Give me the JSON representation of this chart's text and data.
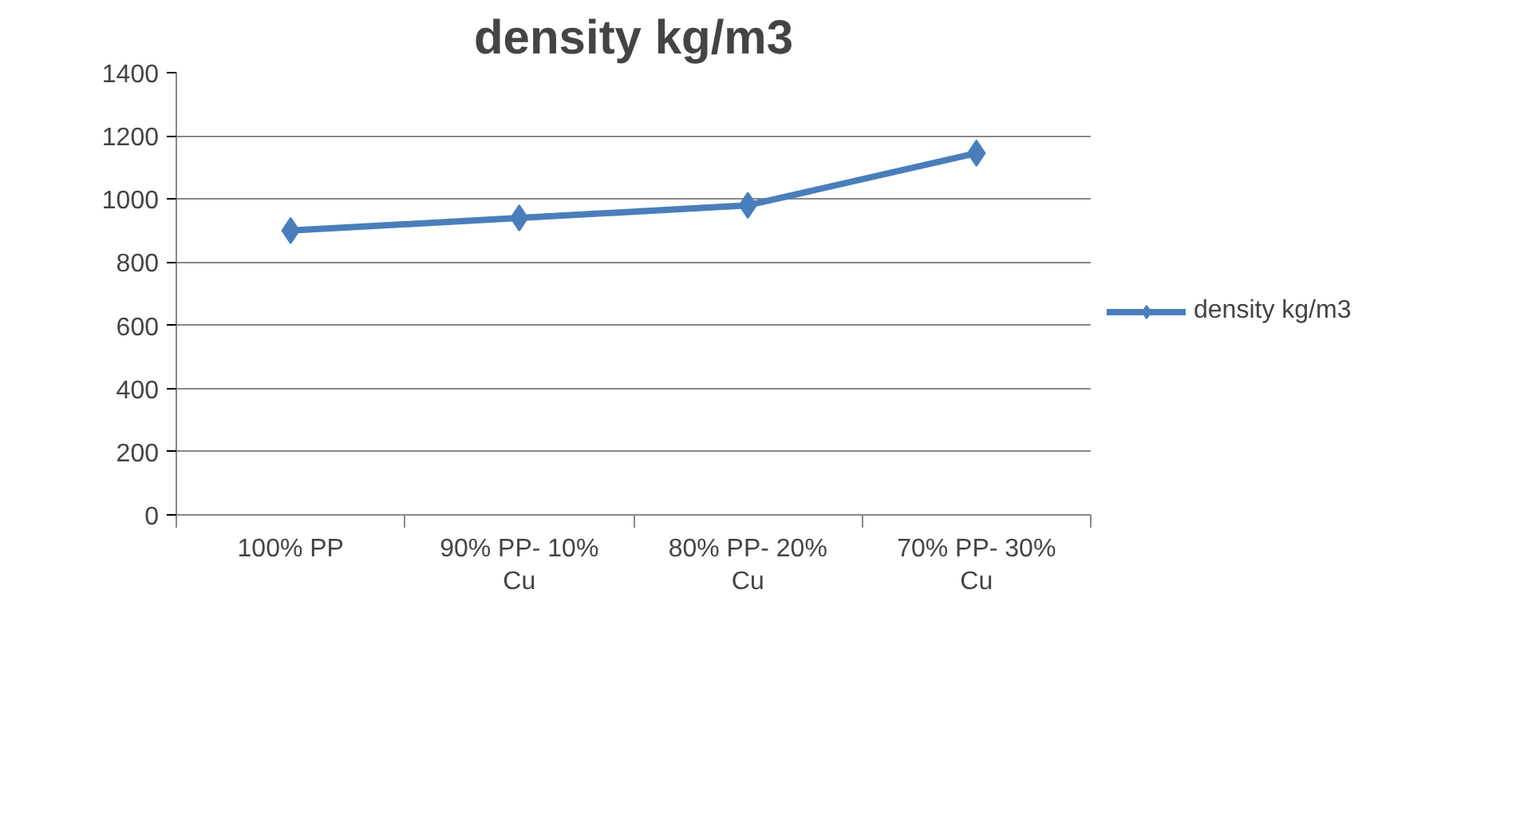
{
  "chart_data": {
    "type": "line",
    "title": "density kg/m3",
    "categories": [
      "100% PP",
      "90% PP- 10% Cu",
      "80% PP- 20% Cu",
      "70% PP- 30% Cu"
    ],
    "series": [
      {
        "name": "density kg/m3",
        "color": "#4a7ebb",
        "values": [
          900,
          940,
          980,
          1145
        ]
      }
    ],
    "ylim": [
      0,
      1400
    ],
    "yticks": [
      0,
      200,
      400,
      600,
      800,
      1000,
      1200,
      1400
    ],
    "grid": "y",
    "legend": "right",
    "marker": "diamond",
    "line_style": "solid"
  }
}
